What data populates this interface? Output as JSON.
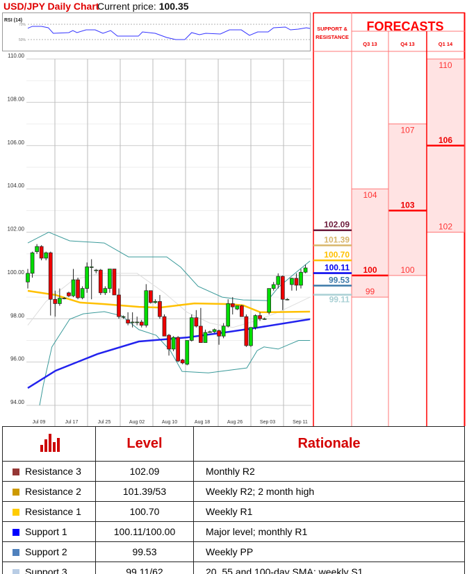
{
  "header": {
    "title": "USD/JPY Daily Chart",
    "price_label": "Current price:",
    "price_value": "100.35"
  },
  "forecast_panel": {
    "sr_header_line1": "SUPPORT &",
    "sr_header_line2": "RESISTANCE",
    "forecasts_title": "FORECASTS",
    "columns": [
      {
        "label": "Q3 13",
        "high": 104,
        "median": 100,
        "low": 99
      },
      {
        "label": "Q4 13",
        "high": 107,
        "median": 103,
        "low": 100
      },
      {
        "label": "Q1 14",
        "high": 110,
        "median": 106,
        "low": 102
      }
    ],
    "sr_levels": [
      {
        "value": "102.09",
        "color": "#6b1a3a"
      },
      {
        "value": "101.39",
        "color": "#d8b56a"
      },
      {
        "value": "100.70",
        "color": "#ffc000"
      },
      {
        "value": "100.11",
        "color": "#0000ee"
      },
      {
        "value": "99.53",
        "color": "#3a78a8"
      },
      {
        "value": "99.11",
        "color": "#a9d0d4"
      }
    ],
    "accent_color": "#ff0000",
    "fill_color": "#ffe3e3"
  },
  "chart_data": [
    {
      "type": "line",
      "title": "RSI (14)",
      "ylim": [
        40,
        78
      ],
      "y_ticks": [
        {
          "value": 70,
          "label": "70%"
        },
        {
          "value": 50,
          "label": "50%"
        }
      ],
      "series": [
        {
          "color": "#3333ff",
          "points": [
            [
              0,
              64.8
            ],
            [
              1,
              67.3
            ],
            [
              3,
              67.3
            ],
            [
              4.5,
              65.5
            ],
            [
              5.6,
              58.2
            ],
            [
              9,
              59.1
            ],
            [
              9.9,
              61.8
            ],
            [
              10.8,
              59.1
            ],
            [
              12.8,
              62.7
            ],
            [
              14.8,
              62.7
            ],
            [
              16.5,
              58.2
            ],
            [
              18.2,
              61.8
            ],
            [
              19.7,
              54.5
            ],
            [
              21.7,
              54.5
            ],
            [
              24.3,
              54.5
            ],
            [
              25.2,
              60
            ],
            [
              28,
              58.2
            ],
            [
              30.5,
              52.7
            ],
            [
              32.5,
              50
            ],
            [
              34.5,
              50
            ],
            [
              36,
              59.1
            ],
            [
              37.7,
              56.4
            ],
            [
              39.1,
              58.2
            ],
            [
              42.3,
              57.3
            ],
            [
              44.3,
              62.7
            ],
            [
              46.9,
              62.7
            ],
            [
              48.7,
              55.5
            ],
            [
              50.5,
              60
            ],
            [
              52.8,
              60
            ],
            [
              54,
              65.5
            ],
            [
              56.6,
              66.4
            ],
            [
              57.7,
              62.7
            ],
            [
              59.4,
              63.6
            ],
            [
              61.2,
              65.5
            ],
            [
              62,
              64.5
            ]
          ]
        }
      ]
    },
    {
      "type": "candlestick",
      "ylim": [
        94,
        110
      ],
      "y_ticks": [
        "110.00",
        "108.00",
        "106.00",
        "104.00",
        "102.00",
        "100.00",
        "98.00",
        "96.00",
        "94.00"
      ],
      "x_ticks": [
        "Jul 09",
        "Jul 17",
        "Jul 25",
        "Aug 02",
        "Aug 10",
        "Aug 18",
        "Aug 26",
        "Sep 03",
        "Sep 11"
      ],
      "grid": true,
      "up_color": "#00dd00",
      "down_color": "#ee0000",
      "ohlc": [
        [
          99.7,
          100.3,
          99.4,
          100.1
        ],
        [
          100.1,
          101.1,
          99.9,
          101.05
        ],
        [
          101.1,
          101.45,
          101.0,
          101.34
        ],
        [
          101.34,
          101.4,
          100.7,
          100.8
        ],
        [
          100.8,
          101.1,
          100.7,
          101.05
        ],
        [
          101.05,
          101.1,
          98.15,
          98.9
        ],
        [
          98.9,
          99.3,
          98.1,
          98.7
        ],
        [
          98.7,
          99.4,
          98.6,
          98.95
        ],
        [
          98.95,
          99.0,
          98.9,
          98.95
        ],
        [
          99.2,
          99.25,
          99.0,
          99.06
        ],
        [
          99.06,
          100.3,
          99.0,
          99.8
        ],
        [
          99.8,
          99.9,
          98.9,
          98.97
        ],
        [
          98.97,
          99.5,
          98.9,
          99.4
        ],
        [
          99.4,
          100.6,
          99.2,
          100.4
        ],
        [
          100.4,
          100.75,
          98.9,
          100.4
        ],
        [
          100.25,
          100.3,
          100.1,
          100.25
        ],
        [
          100.25,
          100.3,
          99.1,
          99.2
        ],
        [
          99.2,
          99.5,
          99.1,
          99.4
        ],
        [
          99.4,
          100.3,
          99.2,
          100.3
        ],
        [
          100.3,
          100.3,
          99.1,
          99.1
        ],
        [
          99.1,
          99.4,
          98.0,
          98.1
        ],
        [
          98.1,
          98.15,
          98.0,
          98.1
        ],
        [
          97.95,
          98.3,
          97.7,
          97.8
        ],
        [
          97.85,
          98.3,
          97.6,
          97.85
        ],
        [
          97.85,
          98.1,
          97.7,
          97.85
        ],
        [
          97.85,
          97.95,
          97.6,
          97.7
        ],
        [
          97.7,
          99.6,
          97.6,
          99.3
        ],
        [
          99.3,
          99.3,
          98.7,
          98.75
        ],
        [
          98.75,
          98.9,
          98.7,
          98.8
        ],
        [
          98.8,
          99.1,
          98.0,
          98.1
        ],
        [
          98.1,
          98.2,
          97.2,
          97.2
        ],
        [
          97.24,
          97.3,
          96.3,
          96.6
        ],
        [
          96.6,
          97.2,
          96.5,
          97.14
        ],
        [
          97.14,
          97.2,
          96.0,
          96.05
        ],
        [
          96.1,
          96.15,
          95.9,
          95.96
        ],
        [
          95.9,
          97.0,
          95.85,
          97.0
        ],
        [
          97.0,
          98.2,
          96.95,
          98.05
        ],
        [
          98.05,
          98.4,
          97.6,
          97.66
        ],
        [
          97.66,
          98.5,
          96.9,
          96.9
        ],
        [
          96.9,
          97.5,
          96.9,
          97.37
        ],
        [
          97.4,
          97.45,
          97.35,
          97.4
        ],
        [
          97.4,
          97.55,
          97.35,
          97.5
        ],
        [
          97.45,
          97.5,
          96.8,
          97.2
        ],
        [
          97.2,
          97.8,
          97.1,
          97.66
        ],
        [
          97.66,
          98.9,
          97.6,
          98.7
        ],
        [
          98.7,
          99.0,
          98.2,
          98.55
        ],
        [
          98.45,
          98.6,
          98.4,
          98.6
        ],
        [
          98.6,
          98.65,
          98.1,
          98.1
        ],
        [
          98.1,
          98.2,
          96.7,
          96.76
        ],
        [
          96.76,
          97.6,
          96.7,
          97.6
        ],
        [
          97.6,
          98.2,
          97.5,
          98.15
        ],
        [
          98.15,
          98.3,
          97.9,
          98.0
        ],
        [
          98.0,
          98.05,
          97.95,
          98.0
        ],
        [
          98.3,
          99.4,
          98.2,
          99.4
        ],
        [
          99.4,
          99.7,
          99.3,
          99.58
        ],
        [
          99.58,
          100.1,
          99.4,
          99.96
        ],
        [
          99.96,
          100.0,
          98.4,
          98.9
        ],
        [
          98.9,
          98.95,
          98.85,
          98.9
        ],
        [
          99.58,
          99.9,
          99.3,
          99.87
        ],
        [
          99.87,
          100.1,
          99.3,
          99.55
        ],
        [
          99.55,
          100.3,
          99.4,
          100.15
        ],
        [
          100.15,
          100.5,
          100.1,
          100.35
        ]
      ],
      "overlays": [
        {
          "color": "#3a9a9a",
          "points": [
            [
              0,
              101.5
            ],
            [
              4.6,
              102.0
            ],
            [
              9.2,
              101.6
            ],
            [
              16.8,
              101.5
            ],
            [
              22.1,
              100.86
            ],
            [
              30.5,
              100.86
            ],
            [
              33.6,
              100.38
            ],
            [
              37.4,
              99.5
            ],
            [
              42.7,
              99.0
            ],
            [
              47.3,
              98.87
            ],
            [
              52.7,
              98.84
            ],
            [
              55,
              99.45
            ],
            [
              58.8,
              100.12
            ],
            [
              62,
              100.67
            ]
          ]
        },
        {
          "color": "#3a9a9a",
          "points": [
            [
              2.6,
              94.0
            ],
            [
              3.4,
              94.93
            ],
            [
              5.3,
              96.7
            ],
            [
              9.2,
              97.98
            ],
            [
              12.2,
              98.23
            ],
            [
              16.8,
              98.33
            ],
            [
              20.6,
              98.14
            ],
            [
              24.4,
              97.5
            ],
            [
              28.2,
              97.24
            ],
            [
              31.3,
              96.53
            ],
            [
              33.9,
              95.57
            ],
            [
              39.7,
              95.5
            ],
            [
              48.1,
              95.73
            ],
            [
              50.4,
              96.53
            ],
            [
              51.9,
              96.7
            ],
            [
              55,
              96.6
            ],
            [
              59.5,
              97.0
            ],
            [
              62,
              97.0
            ]
          ]
        },
        {
          "color": "#dddddd",
          "points": [
            [
              0,
              97.7
            ],
            [
              4,
              98.8
            ],
            [
              10,
              99.8
            ],
            [
              16,
              100.1
            ],
            [
              24,
              100.1
            ],
            [
              30,
              99.2
            ],
            [
              35,
              98.3
            ],
            [
              40,
              97.8
            ],
            [
              45,
              97.6
            ],
            [
              50,
              97.9
            ],
            [
              55,
              98.3
            ],
            [
              62,
              99.0
            ]
          ]
        },
        {
          "color": "#ffc000",
          "points": [
            [
              0,
              99.29
            ],
            [
              6.1,
              99.1
            ],
            [
              11.5,
              98.75
            ],
            [
              16.8,
              98.68
            ],
            [
              24.4,
              98.55
            ],
            [
              29,
              98.52
            ],
            [
              36.6,
              98.71
            ],
            [
              44.3,
              98.68
            ],
            [
              47.3,
              98.62
            ],
            [
              51.1,
              98.3
            ],
            [
              62,
              98.33
            ]
          ]
        },
        {
          "color": "#2222ee",
          "points": [
            [
              0,
              94.8
            ],
            [
              6.1,
              95.6
            ],
            [
              15.3,
              96.37
            ],
            [
              24.4,
              96.95
            ],
            [
              35.1,
              97.14
            ],
            [
              44.3,
              97.4
            ],
            [
              50.4,
              97.59
            ],
            [
              62,
              97.98
            ]
          ]
        }
      ]
    }
  ],
  "levels_table": {
    "icon": "bar-chart-icon",
    "headers": [
      "Level",
      "Rationale"
    ],
    "rows": [
      {
        "label": "Resistance 3",
        "level": "102.09",
        "rationale": "Monthly R2",
        "color": "#953735"
      },
      {
        "label": "Resistance 2",
        "level": "101.39/53",
        "rationale": "Weekly R2; 2 month high",
        "color": "#cc9900"
      },
      {
        "label": "Resistance 1",
        "level": "100.70",
        "rationale": "Weekly R1",
        "color": "#ffcc00"
      },
      {
        "label": "Support 1",
        "level": "100.11/100.00",
        "rationale": "Major level; monthly R1",
        "color": "#0000ff"
      },
      {
        "label": "Support 2",
        "level": "99.53",
        "rationale": "Weekly PP",
        "color": "#4f81bd"
      },
      {
        "label": "Support 3",
        "level": "99.11/62",
        "rationale": "20, 55 and 100-day SMA; weekly S1",
        "color": "#b9cde5"
      }
    ]
  }
}
